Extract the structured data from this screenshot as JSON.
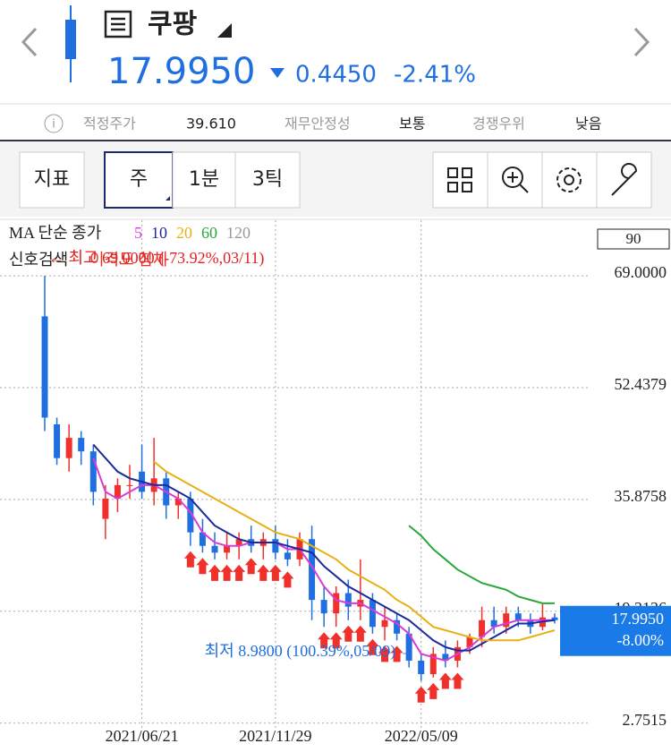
{
  "header": {
    "name": "쿠팡",
    "price": "17.9950",
    "change": "0.4450",
    "change_pct": "-2.41%"
  },
  "info": [
    {
      "label": "적정주가",
      "value": "39.610"
    },
    {
      "label": "재무안정성",
      "value": "보통"
    },
    {
      "label": "경쟁우위",
      "value": "낮음"
    }
  ],
  "toolbar": {
    "buttons": [
      "지표",
      "주",
      "1분",
      "3틱"
    ]
  },
  "chart_data": {
    "type": "candlestick",
    "legend_title": "MA 단순 종가",
    "signal_title": "신호검색",
    "count_box": "90",
    "categories": [
      null,
      null,
      null,
      null,
      null,
      null,
      null,
      null,
      "2021/06/21",
      null,
      null,
      null,
      null,
      null,
      null,
      null,
      null,
      null,
      null,
      "2021/11/29",
      null,
      null,
      null,
      null,
      null,
      null,
      null,
      null,
      null,
      null,
      null,
      "2022/05/09",
      null,
      null,
      null,
      null,
      null,
      null,
      null,
      null,
      null,
      null,
      null
    ],
    "open": [
      63,
      47,
      42,
      45,
      43,
      33,
      36,
      38,
      40,
      37,
      39,
      35,
      36,
      31,
      29,
      28,
      29,
      30,
      29,
      30,
      28,
      27,
      30,
      21,
      19,
      22,
      20,
      21,
      17,
      18,
      16,
      12,
      10,
      13,
      12,
      14,
      15.5,
      18,
      17,
      19,
      18,
      17,
      18.4
    ],
    "high": [
      69,
      48,
      47,
      46,
      44,
      38,
      39,
      41,
      44,
      45,
      40,
      37,
      37,
      33,
      31,
      31,
      31,
      32,
      31,
      32,
      30,
      31,
      32,
      23,
      23,
      24,
      27,
      22,
      20,
      19,
      17,
      13,
      14,
      15,
      15,
      16,
      20,
      20,
      20,
      20,
      19,
      20.5,
      19
    ],
    "low": [
      46,
      41,
      40,
      41,
      35,
      30,
      34,
      36,
      36,
      35,
      33,
      33,
      29,
      28,
      27,
      27,
      27,
      28,
      27,
      27,
      26,
      26,
      18,
      17,
      17,
      18,
      18,
      16,
      15,
      15,
      11,
      8.98,
      9.5,
      11,
      11,
      13,
      14,
      16,
      16,
      17,
      16,
      16.5,
      17.5
    ],
    "close": [
      48,
      42,
      45,
      43,
      37,
      36,
      38,
      38,
      37,
      39,
      35,
      36,
      31,
      29,
      28,
      29,
      30,
      29,
      30,
      28,
      27,
      30,
      21,
      19,
      22,
      20,
      21,
      17,
      18,
      16,
      12,
      10,
      13,
      12,
      14,
      15.5,
      18,
      17,
      19,
      18,
      17,
      18.4,
      17.995
    ],
    "up_color": "#f0302a",
    "down_color": "#1f6fe0",
    "series": [
      {
        "name": "5",
        "color": "#d93bd9",
        "values": [
          null,
          null,
          null,
          null,
          42,
          37,
          36,
          37,
          38,
          38,
          37,
          36,
          34,
          31,
          29.5,
          29,
          29,
          29.5,
          29.5,
          29.5,
          28.5,
          28.5,
          26,
          23,
          21,
          20.5,
          20.5,
          19.5,
          18.5,
          17.5,
          16,
          13,
          12.5,
          12,
          13,
          14,
          15.5,
          17,
          17.5,
          18,
          18,
          18,
          18
        ]
      },
      {
        "name": "10",
        "color": "#1c2a9c",
        "values": [
          null,
          null,
          null,
          null,
          44,
          42,
          40,
          39,
          38.5,
          38,
          38,
          37,
          36,
          34,
          32,
          31,
          30,
          29.5,
          29.5,
          29.5,
          29,
          28.5,
          28,
          26,
          24.5,
          23,
          22,
          21,
          20,
          19,
          18,
          16.5,
          15,
          14,
          13.5,
          13.5,
          14.5,
          15.5,
          16.5,
          17.5,
          17.5,
          17.8,
          18
        ]
      },
      {
        "name": "20",
        "color": "#e8b012",
        "values": [
          null,
          null,
          null,
          null,
          null,
          null,
          null,
          null,
          null,
          41.5,
          40,
          39,
          38,
          37,
          36,
          35,
          34,
          33,
          32,
          31,
          30.5,
          30,
          29,
          28,
          27,
          25.5,
          24.5,
          23.5,
          22.5,
          21,
          20,
          18.5,
          17,
          16.5,
          16,
          15.5,
          15,
          15,
          15,
          15,
          15.5,
          16,
          16.5
        ]
      },
      {
        "name": "60",
        "color": "#2ba83a",
        "values": [
          null,
          null,
          null,
          null,
          null,
          null,
          null,
          null,
          null,
          null,
          null,
          null,
          null,
          null,
          null,
          null,
          null,
          null,
          null,
          null,
          null,
          null,
          null,
          null,
          null,
          null,
          null,
          null,
          null,
          null,
          32,
          30.5,
          28.5,
          27,
          25.5,
          24.5,
          23.5,
          23,
          22.5,
          21.5,
          21,
          20.5,
          20.5
        ]
      },
      {
        "name": "120",
        "color": "#999999",
        "values": [
          null,
          null,
          null,
          null,
          null,
          null,
          null,
          null,
          null,
          null,
          null,
          null,
          null,
          null,
          null,
          null,
          null,
          null,
          null,
          null,
          null,
          null,
          null,
          null,
          null,
          null,
          null,
          null,
          null,
          null,
          null,
          null,
          null,
          null,
          null,
          null,
          null,
          null,
          null,
          null,
          null,
          null,
          null
        ]
      }
    ],
    "signal": {
      "name": "이격도 침체",
      "color": "#f0302a",
      "indices": [
        12,
        13,
        14,
        15,
        16,
        17,
        18,
        19,
        20,
        23,
        24,
        25,
        26,
        27,
        28,
        29,
        31,
        32,
        33,
        34
      ]
    },
    "ylim": [
      -1,
      77.5
    ],
    "yticks": [
      {
        "value": 2.7515,
        "label": "2.7515"
      },
      {
        "value": 19.3136,
        "label": "19.3136"
      },
      {
        "value": 35.8758,
        "label": "35.8758"
      },
      {
        "value": 52.4379,
        "label": "52.4379"
      },
      {
        "value": 69,
        "label": "69.0000"
      }
    ],
    "grid": true,
    "annotations": [
      {
        "text": "← 최고 69.0000 (-73.92%,03/11)",
        "color": "#e02020"
      },
      {
        "text": "최저 8.9800 (100.39%,05/09) →",
        "color": "#1f6fe0"
      }
    ],
    "price_tag": {
      "value": 17.995,
      "label": "17.9950",
      "change": "-8.00%"
    }
  }
}
